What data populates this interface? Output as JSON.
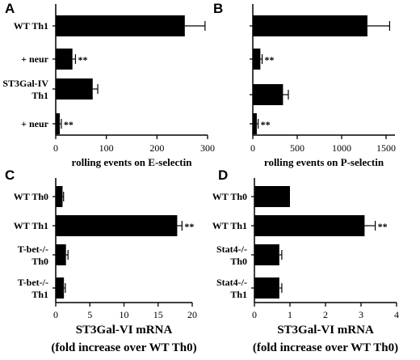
{
  "chart_data": [
    {
      "panel": "A",
      "type": "bar",
      "orientation": "horizontal",
      "categories": [
        "WT Th1",
        "+ neur",
        "ST3Gal-IV\nTh1",
        "+ neur"
      ],
      "values": [
        255,
        33,
        73,
        8
      ],
      "errors": [
        40,
        6,
        10,
        3
      ],
      "significance": [
        "",
        "**",
        "",
        "**"
      ],
      "xlabel": "rolling events on E-selectin",
      "xlim": [
        0,
        300
      ],
      "xticks": [
        0,
        100,
        200,
        300
      ]
    },
    {
      "panel": "B",
      "type": "bar",
      "orientation": "horizontal",
      "categories": [
        "",
        "",
        "",
        ""
      ],
      "values": [
        1290,
        85,
        340,
        45
      ],
      "errors": [
        250,
        20,
        60,
        15
      ],
      "significance": [
        "",
        "**",
        "",
        "**"
      ],
      "xlabel": "rolling events on P-selectin",
      "xlim": [
        0,
        1600
      ],
      "xticks": [
        0,
        500,
        1000,
        1500
      ]
    },
    {
      "panel": "C",
      "type": "bar",
      "orientation": "horizontal",
      "categories": [
        "WT Th0",
        "WT Th1",
        "T-bet-/-\nTh0",
        "T-bet-/-\nTh1"
      ],
      "values": [
        1,
        17.8,
        1.5,
        1.2
      ],
      "errors": [
        0.15,
        0.7,
        0.3,
        0.2
      ],
      "significance": [
        "",
        "**",
        "",
        ""
      ],
      "xlabel": "ST3Gal-VI mRNA",
      "xlabel2": "(fold increase over WT Th0)",
      "xlim": [
        0,
        20
      ],
      "xticks": [
        0,
        5,
        10,
        15,
        20
      ]
    },
    {
      "panel": "D",
      "type": "bar",
      "orientation": "horizontal",
      "categories": [
        "WT Th0",
        "WT Th1",
        "Stat4-/-\nTh0",
        "Stat4-/-\nTh1"
      ],
      "values": [
        1,
        3.1,
        0.7,
        0.7
      ],
      "errors": [
        0,
        0.3,
        0.07,
        0.07
      ],
      "significance": [
        "",
        "**",
        "",
        ""
      ],
      "xlabel": "ST3Gal-VI mRNA",
      "xlabel2": "(fold increase over WT Th0)",
      "xlim": [
        0,
        4
      ],
      "xticks": [
        0,
        1,
        2,
        3,
        4
      ]
    }
  ]
}
